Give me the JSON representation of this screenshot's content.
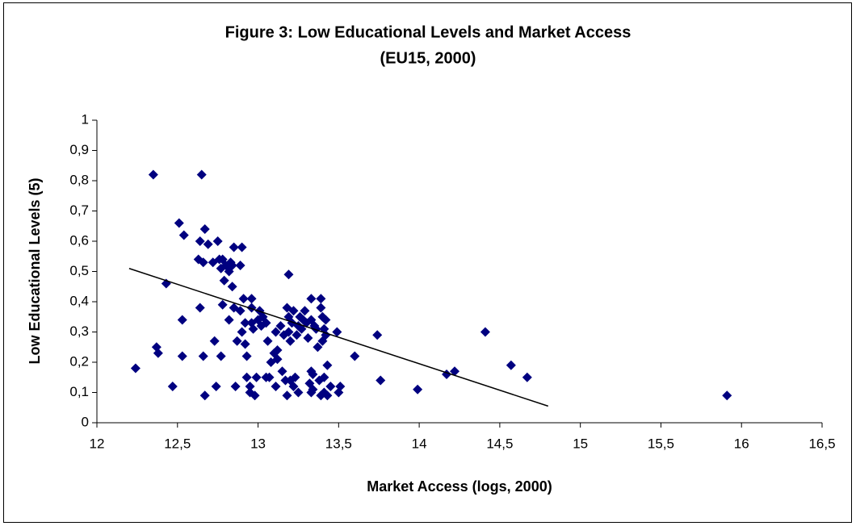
{
  "chart_data": {
    "type": "scatter",
    "title": [
      "Figure 3: Low Educational Levels and Market Access",
      "(EU15, 2000)"
    ],
    "x_label": "Market Access (logs, 2000)",
    "y_label": "Low Educational Levels (5)",
    "color": "#000080",
    "grid": false,
    "xlim": [
      12,
      16.5
    ],
    "ylim": [
      0,
      1
    ],
    "xticks": [
      12,
      {
        "value": 12.5,
        "label": "12,5"
      },
      13,
      {
        "value": 13.5,
        "label": "13,5"
      },
      14,
      {
        "value": 14.5,
        "label": "14,5"
      },
      15,
      {
        "value": 15.5,
        "label": "15,5"
      },
      16,
      {
        "value": 16.5,
        "label": "16,5"
      }
    ],
    "yticks": [
      0,
      {
        "value": 0.1,
        "label": "0,1"
      },
      {
        "value": 0.2,
        "label": "0,2"
      },
      {
        "value": 0.3,
        "label": "0,3"
      },
      {
        "value": 0.4,
        "label": "0,4"
      },
      {
        "value": 0.5,
        "label": "0,5"
      },
      {
        "value": 0.6,
        "label": "0,6"
      },
      {
        "value": 0.7,
        "label": "0,7"
      },
      {
        "value": 0.8,
        "label": "0,8"
      },
      {
        "value": 0.9,
        "label": "0,9"
      },
      1
    ],
    "x": [
      12.35,
      12.65,
      12.24,
      12.37,
      12.38,
      12.43,
      12.47,
      12.51,
      12.54,
      12.53,
      12.53,
      12.64,
      12.64,
      12.67,
      12.63,
      12.66,
      12.69,
      12.66,
      12.67,
      12.72,
      12.73,
      12.74,
      12.75,
      12.76,
      12.77,
      12.77,
      12.78,
      12.79,
      12.8,
      12.78,
      12.82,
      12.83,
      12.84,
      12.84,
      12.85,
      12.85,
      12.82,
      12.86,
      12.87,
      12.89,
      12.89,
      12.9,
      12.9,
      12.91,
      12.92,
      12.92,
      12.93,
      12.93,
      12.95,
      12.95,
      12.96,
      12.96,
      12.96,
      12.97,
      12.98,
      12.99,
      13.0,
      13.01,
      13.02,
      13.03,
      13.05,
      13.05,
      13.06,
      13.07,
      13.08,
      13.1,
      13.11,
      13.11,
      13.12,
      13.12,
      13.14,
      13.15,
      13.16,
      13.17,
      13.18,
      13.18,
      13.19,
      13.19,
      13.19,
      13.2,
      13.2,
      13.21,
      13.22,
      13.22,
      13.23,
      13.24,
      13.25,
      13.25,
      13.26,
      13.27,
      13.28,
      13.29,
      13.3,
      13.31,
      13.32,
      13.33,
      13.33,
      13.33,
      13.33,
      13.34,
      13.34,
      13.35,
      13.36,
      13.37,
      13.38,
      13.39,
      13.39,
      13.39,
      13.4,
      13.4,
      13.41,
      13.41,
      13.41,
      13.42,
      13.42,
      13.43,
      13.43,
      13.45,
      13.49,
      13.5,
      13.51,
      13.6,
      13.74,
      13.76,
      13.99,
      14.17,
      14.22,
      14.41,
      14.57,
      14.67,
      15.91
    ],
    "y": [
      0.82,
      0.82,
      0.18,
      0.25,
      0.23,
      0.46,
      0.12,
      0.66,
      0.62,
      0.34,
      0.22,
      0.38,
      0.6,
      0.64,
      0.54,
      0.53,
      0.59,
      0.22,
      0.09,
      0.53,
      0.27,
      0.12,
      0.6,
      0.54,
      0.51,
      0.22,
      0.54,
      0.47,
      0.52,
      0.39,
      0.5,
      0.53,
      0.45,
      0.52,
      0.38,
      0.58,
      0.34,
      0.12,
      0.27,
      0.37,
      0.52,
      0.58,
      0.3,
      0.41,
      0.33,
      0.26,
      0.22,
      0.15,
      0.12,
      0.1,
      0.41,
      0.33,
      0.38,
      0.31,
      0.09,
      0.15,
      0.34,
      0.37,
      0.32,
      0.35,
      0.33,
      0.15,
      0.27,
      0.15,
      0.2,
      0.23,
      0.3,
      0.12,
      0.24,
      0.21,
      0.32,
      0.17,
      0.29,
      0.14,
      0.09,
      0.38,
      0.49,
      0.3,
      0.35,
      0.14,
      0.27,
      0.33,
      0.12,
      0.37,
      0.15,
      0.29,
      0.32,
      0.1,
      0.35,
      0.31,
      0.34,
      0.37,
      0.33,
      0.28,
      0.13,
      0.1,
      0.41,
      0.34,
      0.17,
      0.16,
      0.11,
      0.32,
      0.31,
      0.25,
      0.14,
      0.09,
      0.41,
      0.38,
      0.35,
      0.27,
      0.31,
      0.1,
      0.15,
      0.34,
      0.29,
      0.19,
      0.09,
      0.12,
      0.3,
      0.1,
      0.12,
      0.22,
      0.29,
      0.14,
      0.11,
      0.16,
      0.17,
      0.3,
      0.19,
      0.15,
      0.09
    ],
    "trendline": {
      "x": [
        12.2,
        14.8
      ],
      "y": [
        0.51,
        0.055
      ],
      "color": "#000000"
    }
  }
}
